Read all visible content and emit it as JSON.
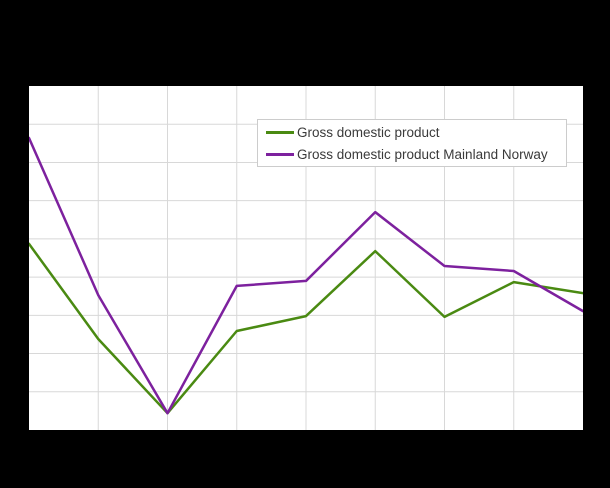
{
  "page": {
    "background_color": "#000000",
    "plot_background_color": "#ffffff"
  },
  "colors": {
    "gridline": "#d8d8d8",
    "legend_border": "#cccccc",
    "legend_text": "#3a3a3a",
    "series_green": "#4a8a12",
    "series_purple": "#7d219e"
  },
  "chart_data": {
    "type": "line",
    "title": "",
    "xlabel": "",
    "ylabel": "",
    "x": [
      0,
      1,
      2,
      3,
      4,
      5,
      6,
      7,
      8
    ],
    "x_axis": {
      "labels_visible": false,
      "intervals": 8
    },
    "y_axis": {
      "labels_visible": false,
      "intervals": 9,
      "units": "gridline units measured up from plot bottom (no tick labels rendered in image)"
    },
    "grid": true,
    "legend_position": "top-right-inside",
    "series": [
      {
        "name": "Gross domestic product",
        "color": "#4a8a12",
        "values": [
          4.87,
          2.38,
          0.44,
          2.59,
          2.98,
          4.68,
          2.96,
          3.87,
          3.58
        ]
      },
      {
        "name": "Gross domestic product Mainland Norway",
        "color": "#7d219e",
        "values": [
          7.64,
          3.53,
          0.44,
          3.77,
          3.9,
          5.7,
          4.29,
          4.16,
          3.11
        ]
      }
    ]
  }
}
